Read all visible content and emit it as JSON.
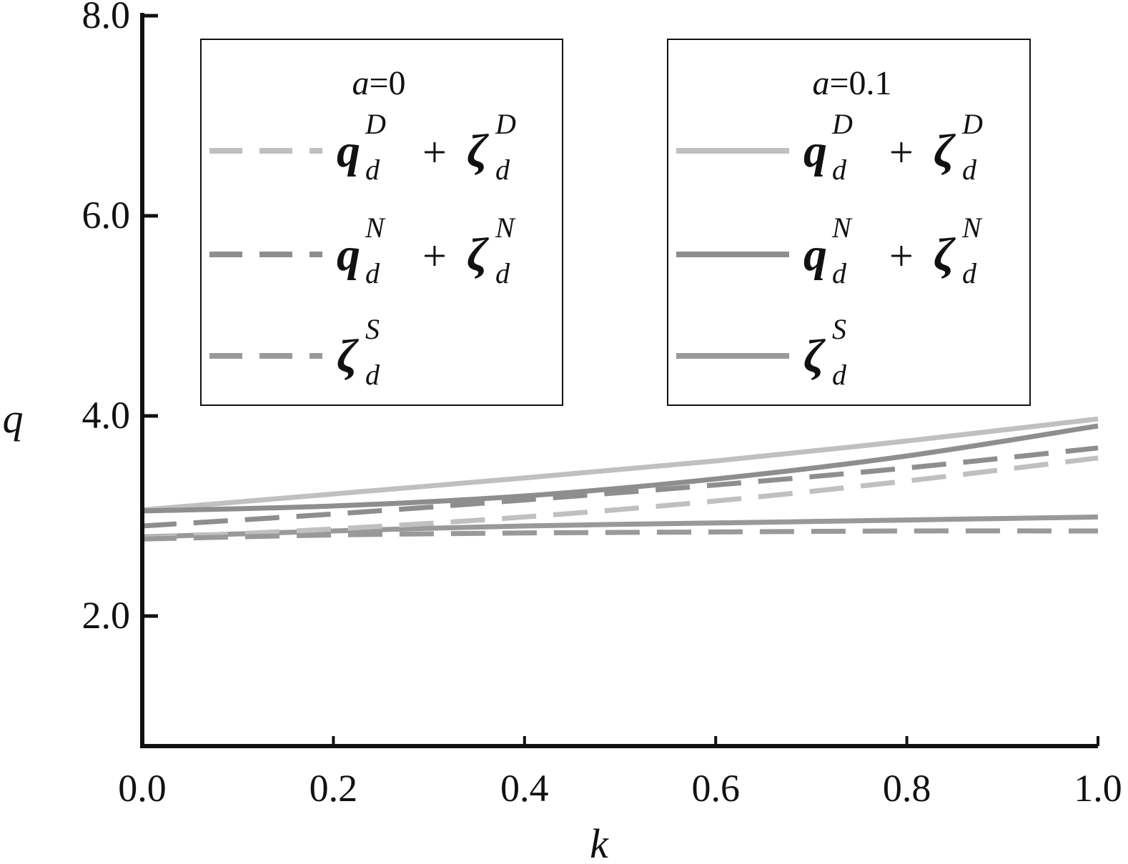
{
  "chart_data": {
    "type": "line",
    "xlabel": "k",
    "ylabel": "q",
    "xlim": [
      0,
      1.0
    ],
    "ylim": [
      0.7,
      8.0
    ],
    "x_ticks": [
      "0.0",
      "0.2",
      "0.4",
      "0.6",
      "0.8",
      "1.0"
    ],
    "x_tick_values": [
      0,
      0.2,
      0.4,
      0.6,
      0.8,
      1.0
    ],
    "y_ticks": [
      "2.0",
      "4.0",
      "6.0",
      "8.0"
    ],
    "y_tick_values": [
      2.0,
      4.0,
      6.0,
      8.0
    ],
    "legends": [
      {
        "title_var": "a",
        "title_val": "=0",
        "items": [
          {
            "main": "q",
            "sub": "d",
            "sup": "D",
            "op": "+",
            "main2": "ζ",
            "sub2": "d",
            "sup2": "D"
          },
          {
            "main": "q",
            "sub": "d",
            "sup": "N",
            "op": "+",
            "main2": "ζ",
            "sub2": "d",
            "sup2": "N"
          },
          {
            "main": "ζ",
            "sub": "d",
            "sup": "S"
          }
        ]
      },
      {
        "title_var": "a",
        "title_val": "=0.1",
        "items": [
          {
            "main": "q",
            "sub": "d",
            "sup": "D",
            "op": "+",
            "main2": "ζ",
            "sub2": "d",
            "sup2": "D"
          },
          {
            "main": "q",
            "sub": "d",
            "sup": "N",
            "op": "+",
            "main2": "ζ",
            "sub2": "d",
            "sup2": "N"
          },
          {
            "main": "ζ",
            "sub": "d",
            "sup": "S"
          }
        ]
      }
    ],
    "series": [
      {
        "legend": 1,
        "item": 0,
        "color": "#c0c0c0",
        "dash": false,
        "x": [
          0,
          0.2,
          0.4,
          0.6,
          0.8,
          1.0
        ],
        "y": [
          3.06,
          3.22,
          3.38,
          3.55,
          3.75,
          3.97
        ]
      },
      {
        "legend": 1,
        "item": 1,
        "color": "#8e8e8e",
        "dash": false,
        "x": [
          0,
          0.2,
          0.4,
          0.6,
          0.8,
          1.0
        ],
        "y": [
          3.05,
          3.1,
          3.2,
          3.37,
          3.6,
          3.9
        ]
      },
      {
        "legend": 1,
        "item": 2,
        "color": "#999999",
        "dash": false,
        "x": [
          0,
          0.2,
          0.4,
          0.6,
          0.8,
          1.0
        ],
        "y": [
          2.79,
          2.85,
          2.9,
          2.93,
          2.96,
          2.99
        ]
      },
      {
        "legend": 0,
        "item": 0,
        "color": "#c0c0c0",
        "dash": true,
        "x": [
          0,
          0.2,
          0.4,
          0.6,
          0.8,
          1.0
        ],
        "y": [
          2.78,
          2.87,
          2.99,
          3.15,
          3.35,
          3.58
        ]
      },
      {
        "legend": 0,
        "item": 1,
        "color": "#8e8e8e",
        "dash": true,
        "x": [
          0,
          0.2,
          0.4,
          0.6,
          0.8,
          1.0
        ],
        "y": [
          2.9,
          3.02,
          3.16,
          3.31,
          3.48,
          3.68
        ]
      },
      {
        "legend": 0,
        "item": 2,
        "color": "#999999",
        "dash": true,
        "x": [
          0,
          0.2,
          0.4,
          0.6,
          0.8,
          1.0
        ],
        "y": [
          2.77,
          2.81,
          2.83,
          2.84,
          2.85,
          2.85
        ]
      }
    ]
  }
}
